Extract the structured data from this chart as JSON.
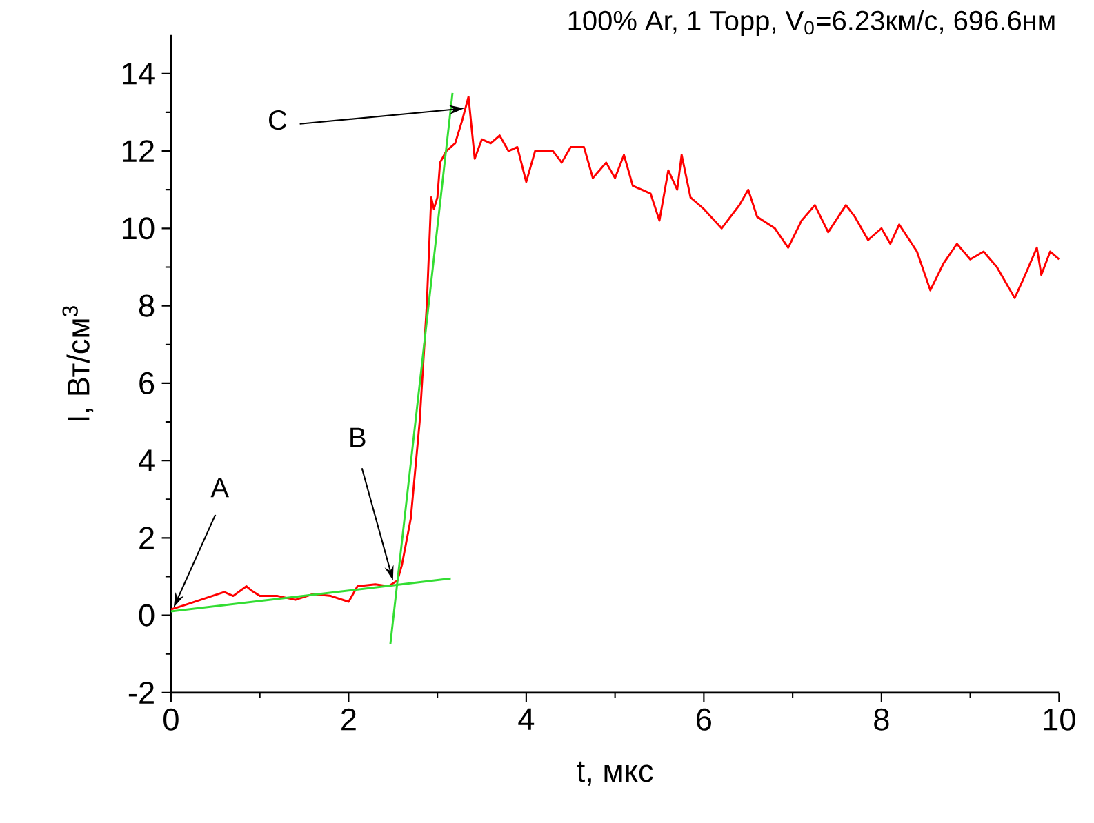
{
  "chart_data": {
    "type": "line",
    "title": "100% Ar, 1 Торр,  V$_{0}$=6.23км/с,  696.6нм",
    "xlabel": "t, мкс",
    "ylabel": "I, Вт/см$^{3}$",
    "xlim": [
      0,
      10
    ],
    "ylim": [
      -2,
      15
    ],
    "xticks": [
      0,
      2,
      4,
      6,
      8,
      10
    ],
    "yticks": [
      -2,
      0,
      2,
      4,
      6,
      8,
      10,
      12,
      14
    ],
    "grid": false,
    "marker": "none",
    "line_style": "solid",
    "series": [
      {
        "color": "#ff0000",
        "x": [
          0,
          0.2,
          0.4,
          0.6,
          0.7,
          0.85,
          0.9,
          1.0,
          1.2,
          1.4,
          1.6,
          1.8,
          2.0,
          2.1,
          2.3,
          2.45,
          2.55,
          2.6,
          2.7,
          2.8,
          2.88,
          2.93,
          2.96,
          3.0,
          3.03,
          3.1,
          3.2,
          3.28,
          3.35,
          3.42,
          3.5,
          3.6,
          3.7,
          3.8,
          3.9,
          4.0,
          4.1,
          4.3,
          4.4,
          4.5,
          4.65,
          4.75,
          4.9,
          5.0,
          5.1,
          5.2,
          5.3,
          5.4,
          5.5,
          5.6,
          5.7,
          5.75,
          5.85,
          6.0,
          6.2,
          6.4,
          6.5,
          6.6,
          6.8,
          6.95,
          7.1,
          7.25,
          7.4,
          7.6,
          7.7,
          7.85,
          8.0,
          8.1,
          8.2,
          8.4,
          8.55,
          8.7,
          8.85,
          9.0,
          9.15,
          9.3,
          9.5,
          9.6,
          9.75,
          9.8,
          9.9,
          10.0
        ],
        "values": [
          0.15,
          0.3,
          0.45,
          0.6,
          0.5,
          0.75,
          0.65,
          0.5,
          0.5,
          0.4,
          0.55,
          0.5,
          0.35,
          0.75,
          0.8,
          0.75,
          0.9,
          1.3,
          2.5,
          5,
          8,
          10.8,
          10.5,
          10.8,
          11.7,
          12.0,
          12.2,
          12.8,
          13.4,
          11.8,
          12.3,
          12.2,
          12.4,
          12.0,
          12.1,
          11.2,
          12.0,
          12.0,
          11.7,
          12.1,
          12.1,
          11.3,
          11.7,
          11.3,
          11.9,
          11.1,
          11.0,
          10.9,
          10.2,
          11.5,
          11.0,
          11.9,
          10.8,
          10.5,
          10.0,
          10.6,
          11.0,
          10.3,
          10.0,
          9.5,
          10.2,
          10.6,
          9.9,
          10.6,
          10.3,
          9.7,
          10.0,
          9.6,
          10.1,
          9.4,
          8.4,
          9.1,
          9.6,
          9.2,
          9.4,
          9.0,
          8.2,
          8.7,
          9.5,
          8.8,
          9.4,
          9.2
        ]
      },
      {
        "color": "#33dd33",
        "x": [
          0,
          3.15
        ],
        "values": [
          0.1,
          0.95
        ]
      },
      {
        "color": "#33dd33",
        "x": [
          2.47,
          3.17
        ],
        "values": [
          -0.75,
          13.5
        ]
      }
    ],
    "annotations": [
      {
        "text": "A",
        "x": 0.03,
        "y": 0.2
      },
      {
        "text": "B",
        "x": 2.5,
        "y": 0.9
      },
      {
        "text": "C",
        "x": 3.3,
        "y": 13.1
      }
    ]
  }
}
